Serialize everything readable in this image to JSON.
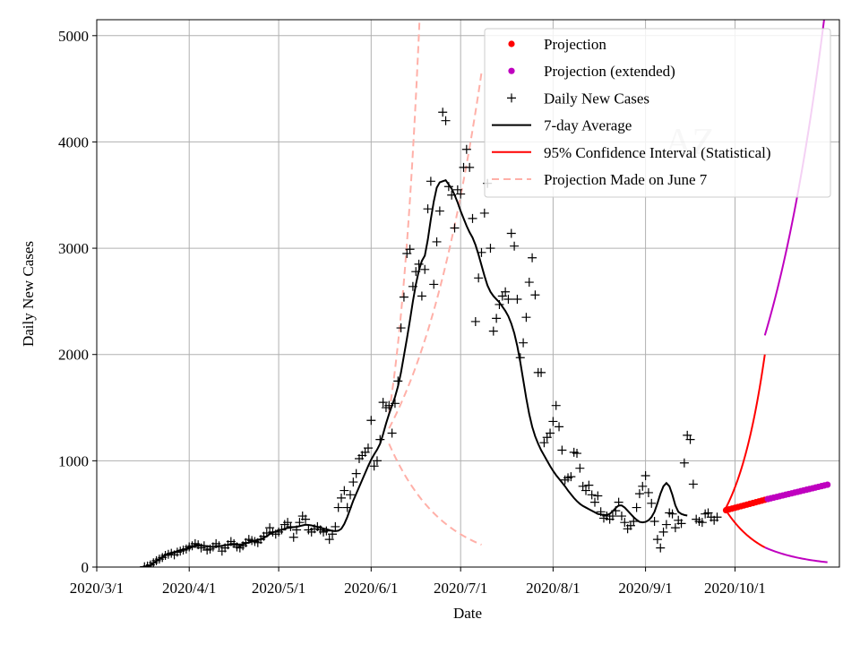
{
  "chart_data": {
    "type": "line",
    "title": "",
    "watermark": "AZ",
    "xlabel": "Date",
    "ylabel": "Daily New Cases",
    "xlim": [
      "2020-03-01",
      "2020-11-05"
    ],
    "ylim": [
      0,
      5150
    ],
    "grid": true,
    "legend_position": "top-right",
    "x_tick_labels": [
      "2020/3/1",
      "2020/4/1",
      "2020/5/1",
      "2020/6/1",
      "2020/7/1",
      "2020/8/1",
      "2020/9/1",
      "2020/10/1"
    ],
    "x_tick_dates": [
      "2020-03-01",
      "2020-04-01",
      "2020-05-01",
      "2020-06-01",
      "2020-07-01",
      "2020-08-01",
      "2020-09-01",
      "2020-10-01"
    ],
    "y_ticks": [
      0,
      1000,
      2000,
      3000,
      4000,
      5000
    ],
    "y_tick_labels": [
      "0",
      "1000",
      "2000",
      "3000",
      "4000",
      "5000"
    ],
    "legend": [
      {
        "key": "projection",
        "label": "Projection",
        "style": "dot",
        "color": "#ff0000"
      },
      {
        "key": "projection_extended",
        "label": "Projection (extended)",
        "style": "dot",
        "color": "#bf00bf"
      },
      {
        "key": "daily",
        "label": "Daily New Cases",
        "style": "plus",
        "color": "#000000"
      },
      {
        "key": "avg",
        "label": "7-day Average",
        "style": "line",
        "color": "#000000"
      },
      {
        "key": "ci",
        "label": "95% Confidence Interval (Statistical)",
        "style": "line",
        "color": "#ff0000"
      },
      {
        "key": "june7",
        "label": "Projection Made on June 7",
        "style": "dash",
        "color": "#ffb0a8"
      }
    ],
    "daily_new_cases": {
      "start_date": "2020-03-17",
      "values": [
        3,
        10,
        20,
        40,
        60,
        75,
        90,
        110,
        120,
        130,
        115,
        140,
        150,
        160,
        170,
        190,
        200,
        220,
        210,
        180,
        200,
        160,
        170,
        190,
        220,
        200,
        150,
        180,
        210,
        240,
        220,
        190,
        180,
        200,
        230,
        260,
        250,
        240,
        230,
        260,
        290,
        320,
        370,
        330,
        310,
        330,
        350,
        400,
        420,
        380,
        280,
        350,
        420,
        480,
        450,
        350,
        330,
        360,
        380,
        350,
        330,
        340,
        260,
        310,
        380,
        560,
        650,
        720,
        560,
        680,
        800,
        880,
        1020,
        1050,
        1080,
        1120,
        1380,
        950,
        1000,
        1200,
        1550,
        1500,
        1520,
        1260,
        1540,
        1750,
        2250,
        2540,
        2950,
        2990,
        2640,
        2780,
        2850,
        2550,
        2800,
        3370,
        3630,
        2660,
        3060,
        3350,
        4280,
        4200,
        3580,
        3500,
        3190,
        3550,
        3510,
        3760,
        3930,
        3760,
        3280,
        2310,
        2720,
        2960,
        3330,
        3610,
        3000,
        2220,
        2340,
        2470,
        2550,
        2590,
        2520,
        3140,
        3020,
        2520,
        1970,
        2110,
        2350,
        2680,
        2910,
        2560,
        1830,
        1830,
        1170,
        1220,
        1260,
        1370,
        1520,
        1320,
        1100,
        820,
        840,
        850,
        1080,
        1070,
        930,
        760,
        720,
        770,
        680,
        610,
        670,
        520,
        460,
        480,
        450,
        480,
        530,
        610,
        480,
        420,
        360,
        390,
        430,
        560,
        690,
        760,
        860,
        700,
        600,
        430,
        260,
        180,
        330,
        400,
        510,
        500,
        370,
        440,
        410,
        980,
        1240,
        1200,
        780,
        450,
        430,
        420,
        500,
        510,
        470,
        440,
        470
      ]
    },
    "seven_day_average": {
      "start_date": "2020-03-17",
      "values": [
        3,
        8,
        18,
        35,
        55,
        75,
        95,
        110,
        125,
        135,
        140,
        150,
        158,
        165,
        172,
        180,
        188,
        195,
        200,
        200,
        198,
        195,
        192,
        190,
        190,
        195,
        200,
        205,
        210,
        212,
        212,
        210,
        210,
        215,
        222,
        232,
        240,
        248,
        255,
        262,
        275,
        290,
        310,
        325,
        335,
        345,
        352,
        360,
        368,
        372,
        375,
        378,
        385,
        392,
        398,
        396,
        392,
        385,
        378,
        370,
        362,
        356,
        348,
        340,
        338,
        342,
        360,
        405,
        470,
        548,
        625,
        690,
        755,
        820,
        885,
        950,
        1010,
        1060,
        1105,
        1160,
        1250,
        1350,
        1440,
        1520,
        1600,
        1700,
        1830,
        1990,
        2150,
        2320,
        2500,
        2660,
        2790,
        2880,
        2930,
        3080,
        3270,
        3440,
        3570,
        3620,
        3630,
        3640,
        3600,
        3560,
        3500,
        3430,
        3350,
        3280,
        3210,
        3150,
        3100,
        3030,
        2940,
        2840,
        2740,
        2650,
        2590,
        2550,
        2520,
        2490,
        2450,
        2410,
        2360,
        2290,
        2200,
        2080,
        1930,
        1760,
        1590,
        1440,
        1320,
        1230,
        1160,
        1100,
        1050,
        1000,
        950,
        905,
        865,
        830,
        795,
        760,
        720,
        685,
        650,
        620,
        595,
        575,
        560,
        545,
        530,
        515,
        500,
        495,
        490,
        490,
        500,
        525,
        555,
        580,
        580,
        560,
        530,
        500,
        470,
        445,
        425,
        420,
        425,
        440,
        470,
        520,
        600,
        690,
        760,
        790,
        760,
        680,
        580,
        520,
        500,
        490,
        485
      ]
    },
    "projection": {
      "start_date": "2020-09-28",
      "end_date": "2020-10-12",
      "start_value": 535,
      "end_value": 640
    },
    "projection_extended": {
      "start_date": "2020-10-12",
      "end_date": "2020-11-01",
      "start_value": 640,
      "end_value": 775
    },
    "confidence_interval": {
      "start_date": "2020-09-28",
      "end_date": "2020-10-11",
      "start_value": 560,
      "upper_end": 2000,
      "lower_end": 185
    },
    "confidence_interval_extended": {
      "start_date": "2020-10-11",
      "end_date": "2020-11-01",
      "upper_start": 2180,
      "upper_end": 5150,
      "lower_start": 185,
      "lower_end": 45
    },
    "june7_projection": {
      "start_date": "2020-06-07",
      "upper_end_date": "2020-06-18",
      "upper_end": 5150,
      "upper_extra_end_date": "2020-07-08",
      "upper_extra_end": 4650,
      "lower_end_date": "2020-07-08",
      "lower_end": 210,
      "start_value": 1450
    }
  }
}
